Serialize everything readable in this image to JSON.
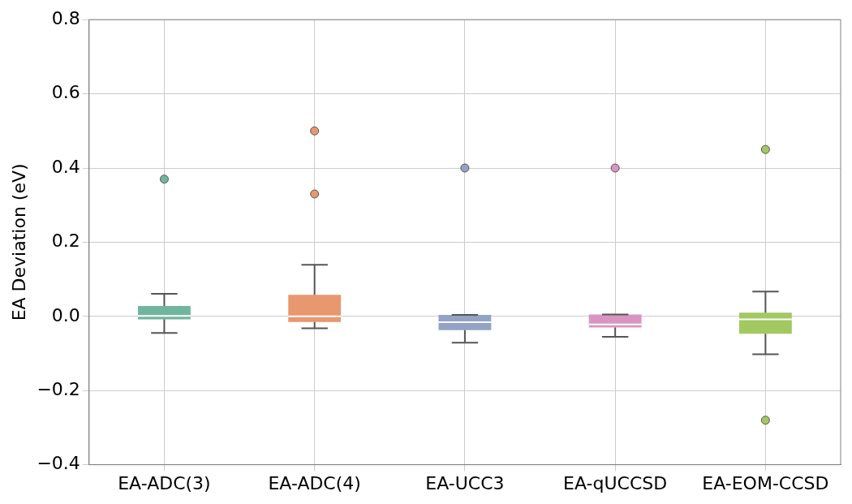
{
  "chart_data": {
    "type": "box",
    "ylabel": "EA Deviation (eV)",
    "categories": [
      "EA-ADC(3)",
      "EA-ADC(4)",
      "EA-UCC3",
      "EA-qUCCSD",
      "EA-EOM-CCSD"
    ],
    "colors": [
      "#71b59f",
      "#e8976f",
      "#93a3c5",
      "#d995c1",
      "#a2c862"
    ],
    "boxes": [
      {
        "low": -0.045,
        "q1": -0.008,
        "median": 0.001,
        "q3": 0.028,
        "high": 0.061,
        "outliers": [
          0.37
        ]
      },
      {
        "low": -0.032,
        "q1": -0.015,
        "median": 0.0,
        "q3": 0.058,
        "high": 0.139,
        "outliers": [
          0.33,
          0.5
        ]
      },
      {
        "low": -0.071,
        "q1": -0.037,
        "median": -0.016,
        "q3": 0.004,
        "high": 0.004,
        "outliers": [
          0.4
        ]
      },
      {
        "low": -0.055,
        "q1": -0.03,
        "median": -0.022,
        "q3": 0.005,
        "high": 0.005,
        "outliers": [
          0.4
        ]
      },
      {
        "low": -0.102,
        "q1": -0.047,
        "median": -0.008,
        "q3": 0.01,
        "high": 0.067,
        "outliers": [
          0.45,
          -0.28
        ]
      }
    ],
    "ylim": [
      -0.4,
      0.8
    ],
    "yticks": [
      {
        "value": -0.4,
        "label": "−0.4"
      },
      {
        "value": -0.2,
        "label": "−0.2"
      },
      {
        "value": 0,
        "label": "0.0"
      },
      {
        "value": 0.2,
        "label": "0.2"
      },
      {
        "value": 0.4,
        "label": "0.4"
      },
      {
        "value": 0.6,
        "label": "0.6"
      },
      {
        "value": 0.8,
        "label": "0.8"
      }
    ],
    "grid": true,
    "legend": false
  }
}
